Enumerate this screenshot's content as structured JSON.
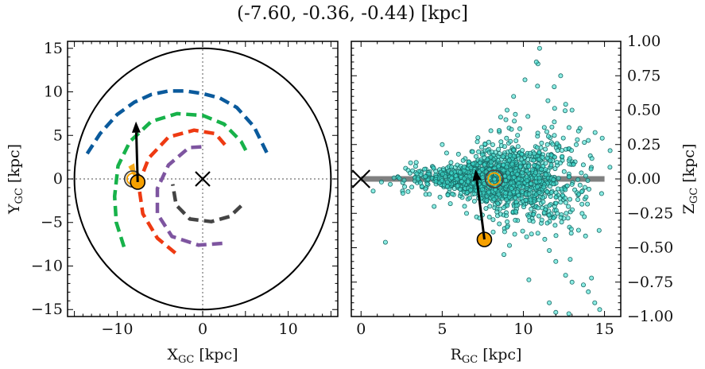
{
  "title": "(-7.60, -0.36, -0.44) [kpc]",
  "colors": {
    "spiral_blue": "#0a5a9c",
    "spiral_green": "#17b24a",
    "spiral_red": "#ee3a12",
    "spiral_purple": "#7e55a0",
    "spiral_gray": "#444444",
    "sun": "#f5a000",
    "scatter": "#3ee0d0",
    "scatter_edge": "#1a6a66",
    "disk_line": "#808080"
  },
  "chart_data": [
    {
      "type": "line",
      "panel": "left",
      "xlabel": "X",
      "xlabel_sub": "GC",
      "xlabel_unit": " [kpc]",
      "ylabel": "Y",
      "ylabel_sub": "GC",
      "ylabel_unit": " [kpc]",
      "xlim": [
        -15.8,
        15.8
      ],
      "ylim": [
        -15.8,
        15.8
      ],
      "xticks": [
        -10,
        0,
        10
      ],
      "xtick_labels": [
        "−10",
        "0",
        "10"
      ],
      "yticks": [
        -15,
        -10,
        -5,
        0,
        5,
        10,
        15
      ],
      "ytick_labels": [
        "−15",
        "−10",
        "−5",
        "0",
        "5",
        "10",
        "15"
      ],
      "boundary_circle_radius": 15,
      "center_marker": [
        0,
        0
      ],
      "spiral_arms": [
        {
          "color": "#0a5a9c",
          "points": [
            [
              -13.5,
              2.9
            ],
            [
              -12,
              5.2
            ],
            [
              -10,
              7.4
            ],
            [
              -8,
              8.8
            ],
            [
              -6,
              9.7
            ],
            [
              -4,
              10.1
            ],
            [
              -2,
              10.1
            ],
            [
              0,
              9.8
            ],
            [
              2,
              9.3
            ],
            [
              4,
              8.2
            ],
            [
              6,
              6
            ],
            [
              7.6,
              2.8
            ]
          ]
        },
        {
          "color": "#17b24a",
          "points": [
            [
              -9.2,
              -7.8
            ],
            [
              -10.1,
              -5
            ],
            [
              -10.3,
              -2
            ],
            [
              -9.9,
              1.5
            ],
            [
              -8.5,
              4.3
            ],
            [
              -6,
              6.6
            ],
            [
              -3,
              7.5
            ],
            [
              0,
              7.3
            ],
            [
              2.5,
              6.3
            ],
            [
              4.5,
              4.3
            ],
            [
              5.3,
              2.8
            ]
          ]
        },
        {
          "color": "#ee3a12",
          "points": [
            [
              -3.2,
              -8.5
            ],
            [
              -5.3,
              -6.8
            ],
            [
              -7,
              -4
            ],
            [
              -7.5,
              -0.6
            ],
            [
              -6.3,
              2.4
            ],
            [
              -4,
              4.8
            ],
            [
              -1,
              5.6
            ],
            [
              1.5,
              5.2
            ],
            [
              2.8,
              3.7
            ]
          ]
        },
        {
          "color": "#7e55a0",
          "points": [
            [
              2.3,
              -7.4
            ],
            [
              -0.5,
              -7.6
            ],
            [
              -3.6,
              -6.6
            ],
            [
              -5.3,
              -4
            ],
            [
              -5.3,
              -1.1
            ],
            [
              -4,
              1.6
            ],
            [
              -1.6,
              3.6
            ],
            [
              0,
              3.7
            ]
          ]
        },
        {
          "color": "#444444",
          "points": [
            [
              4.5,
              -3.1
            ],
            [
              3.2,
              -4.3
            ],
            [
              1,
              -4.9
            ],
            [
              -1.5,
              -4.6
            ],
            [
              -3.1,
              -3
            ],
            [
              -3.5,
              -0.6
            ]
          ]
        }
      ],
      "sun_position": [
        -7.6,
        -0.36
      ],
      "ring_marker": [
        -8.2,
        0
      ],
      "velocity_vector": {
        "from": [
          -7.6,
          -0.36
        ],
        "to": [
          -7.8,
          6.6
        ]
      }
    },
    {
      "type": "scatter",
      "panel": "right",
      "xlabel": "R",
      "xlabel_sub": "GC",
      "xlabel_unit": " [kpc]",
      "ylabel": "Z",
      "ylabel_sub": "GC",
      "ylabel_unit": " [kpc]",
      "xlim": [
        -0.6,
        16
      ],
      "ylim": [
        -1.0,
        1.0
      ],
      "xticks": [
        0,
        5,
        10,
        15
      ],
      "xtick_labels": [
        "0",
        "5",
        "10",
        "15"
      ],
      "yticks": [
        -1.0,
        -0.75,
        -0.5,
        -0.25,
        0.0,
        0.25,
        0.5,
        0.75,
        1.0
      ],
      "ytick_labels": [
        "−1.00",
        "−0.75",
        "−0.50",
        "−0.25",
        "0.00",
        "0.25",
        "0.50",
        "0.75",
        "1.00"
      ],
      "ylabel_side": "right",
      "disk_line": {
        "x": [
          0,
          15
        ],
        "y": 0
      },
      "center_marker": [
        0,
        0
      ],
      "sun_position": [
        7.6,
        -0.44
      ],
      "ring_marker": [
        8.2,
        0
      ],
      "velocity_vector": {
        "from": [
          7.6,
          -0.44
        ],
        "to": [
          7.05,
          0.07
        ]
      },
      "cluster": {
        "approx_count": 1600,
        "core_x": [
          5,
          12
        ],
        "core_y": [
          -0.15,
          0.15
        ],
        "points": [
          [
            1.5,
            -0.46
          ],
          [
            3.4,
            0.12
          ],
          [
            5.0,
            0.25
          ],
          [
            6.0,
            0.18
          ],
          [
            7.2,
            0.3
          ],
          [
            8.0,
            0.35
          ],
          [
            8.6,
            0.45
          ],
          [
            9.0,
            0.5
          ],
          [
            9.4,
            0.6
          ],
          [
            10.1,
            0.72
          ],
          [
            10.8,
            0.85
          ],
          [
            11.0,
            0.95
          ],
          [
            12.3,
            0.75
          ],
          [
            11.9,
            0.67
          ],
          [
            13.0,
            0.5
          ],
          [
            14.0,
            0.28
          ],
          [
            9.5,
            -0.3
          ],
          [
            10.2,
            -0.42
          ],
          [
            11.6,
            -0.52
          ],
          [
            12.0,
            -0.6
          ],
          [
            12.6,
            -0.7
          ],
          [
            13.0,
            -0.75
          ],
          [
            14.0,
            -0.82
          ],
          [
            14.4,
            -0.9
          ],
          [
            14.7,
            -0.95
          ],
          [
            11.6,
            -0.9
          ],
          [
            12.0,
            -0.97
          ],
          [
            12.8,
            -0.98
          ],
          [
            13.7,
            -0.77
          ],
          [
            14.2,
            -0.72
          ],
          [
            4.5,
            -0.2
          ],
          [
            5.5,
            -0.18
          ],
          [
            6.5,
            -0.25
          ],
          [
            9.0,
            -0.35
          ],
          [
            10.5,
            -0.4
          ],
          [
            8.8,
            -0.55
          ]
        ]
      }
    }
  ]
}
